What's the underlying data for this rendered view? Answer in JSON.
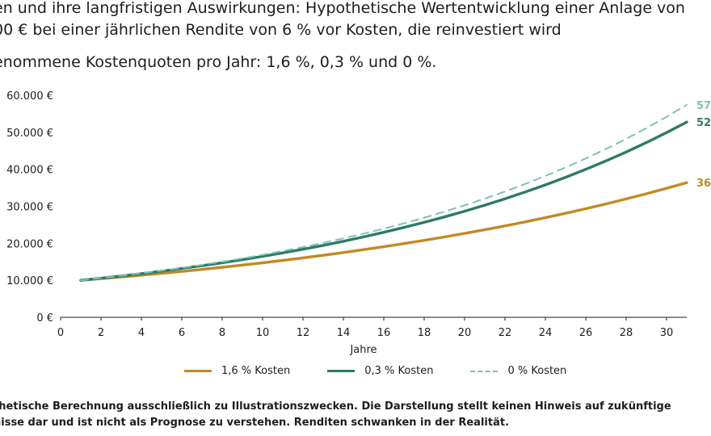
{
  "title_lines": [
    "en und ihre langfristigen Auswirkungen: Hypothetische Wertentwicklung einer Anlage von",
    "00 € bei einer jährlichen Rendite von 6 % vor Kosten, die reinvestiert wird"
  ],
  "subtitle": "enommene Kostenquoten pro Jahr: 1,6 %, 0,3 % und 0 %.",
  "footnote_lines": [
    "thetische Berechnung ausschließlich zu Illustrationszwecken. Die Darstellung stellt keinen Hinweis auf zukünftige",
    "nisse dar und ist nicht als Prognose zu verstehen. Renditen schwanken in der Realität."
  ],
  "chart_data": {
    "type": "line",
    "x": [
      1,
      2,
      3,
      4,
      5,
      6,
      7,
      8,
      9,
      10,
      11,
      12,
      13,
      14,
      15,
      16,
      17,
      18,
      19,
      20,
      21,
      22,
      23,
      24,
      25,
      26,
      27,
      28,
      29,
      30,
      31
    ],
    "xlabel": "Jahre",
    "xticks": [
      0,
      2,
      4,
      6,
      8,
      10,
      12,
      14,
      16,
      18,
      20,
      22,
      24,
      26,
      28,
      30
    ],
    "xlim": [
      0,
      31
    ],
    "ylim": [
      0,
      60000
    ],
    "yticks": [
      0,
      10000,
      20000,
      30000,
      40000,
      50000,
      60000
    ],
    "ytick_labels": [
      "0 €",
      "10.000 €",
      "20.000 €",
      "30.000 €",
      "40.000 €",
      "50.000 €",
      "60.000 €"
    ],
    "grid": false,
    "legend_position": "bottom",
    "series": [
      {
        "name": "1,6 % Kosten",
        "color": "#c28a22",
        "style": "solid",
        "end_label": "36",
        "values": [
          10000,
          10440,
          10899,
          11379,
          11880,
          12402,
          12948,
          13518,
          14113,
          14733,
          15382,
          16058,
          16765,
          17502,
          18273,
          19077,
          19916,
          20792,
          21707,
          22662,
          23659,
          24700,
          25787,
          26922,
          28106,
          29343,
          30634,
          31982,
          33389,
          34858,
          36392
        ]
      },
      {
        "name": "0,3 % Kosten",
        "color": "#2e7a69",
        "style": "solid",
        "end_label": "52",
        "values": [
          10000,
          10570,
          11172,
          11809,
          12482,
          13194,
          13946,
          14741,
          15581,
          16469,
          17408,
          18400,
          19449,
          20558,
          21730,
          22968,
          24278,
          25661,
          27124,
          28670,
          30304,
          32032,
          33858,
          35788,
          37827,
          39984,
          42263,
          44672,
          47218,
          49910,
          52755
        ]
      },
      {
        "name": "0 % Kosten",
        "color": "#7fc2b0",
        "style": "dashed",
        "end_label": "57,",
        "values": [
          10000,
          10600,
          11236,
          11910,
          12625,
          13382,
          14185,
          15036,
          15938,
          16895,
          17908,
          18983,
          20122,
          21329,
          22609,
          23966,
          25404,
          26928,
          28543,
          30256,
          32071,
          33996,
          36035,
          38197,
          40489,
          42919,
          45494,
          48223,
          51117,
          54184,
          57435
        ]
      }
    ]
  }
}
